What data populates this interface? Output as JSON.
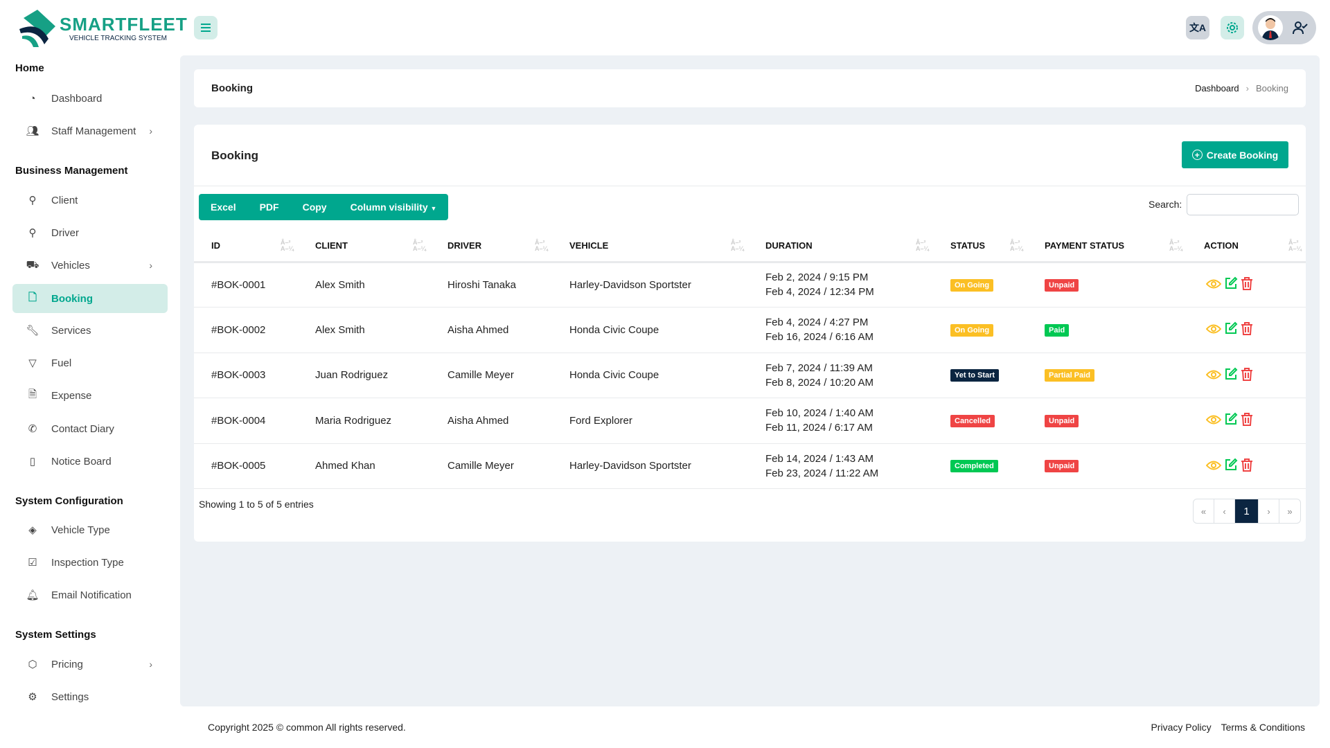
{
  "brand": {
    "name": "SMARTFLEET",
    "tagline": "VEHICLE TRACKING SYSTEM",
    "colors": {
      "accent": "#00a78e",
      "navy": "#0b2541"
    }
  },
  "sidebar": {
    "sections": [
      {
        "title": "Home",
        "items": [
          {
            "label": "Dashboard",
            "icon": "dashboard-icon"
          },
          {
            "label": "Staff Management",
            "icon": "users-icon",
            "chevron": true
          }
        ]
      },
      {
        "title": "Business Management",
        "items": [
          {
            "label": "Client",
            "icon": "user-icon"
          },
          {
            "label": "Driver",
            "icon": "driver-icon"
          },
          {
            "label": "Vehicles",
            "icon": "truck-icon",
            "chevron": true
          },
          {
            "label": "Booking",
            "icon": "file-icon",
            "active": true
          },
          {
            "label": "Services",
            "icon": "wrench-icon"
          },
          {
            "label": "Fuel",
            "icon": "filter-icon"
          },
          {
            "label": "Expense",
            "icon": "receipt-icon"
          },
          {
            "label": "Contact Diary",
            "icon": "phone-icon"
          },
          {
            "label": "Notice Board",
            "icon": "notebook-icon"
          }
        ]
      },
      {
        "title": "System Configuration",
        "items": [
          {
            "label": "Vehicle Type",
            "icon": "layers-icon"
          },
          {
            "label": "Inspection Type",
            "icon": "check-circle-icon"
          },
          {
            "label": "Email Notification",
            "icon": "bell-icon"
          }
        ]
      },
      {
        "title": "System Settings",
        "items": [
          {
            "label": "Pricing",
            "icon": "box-icon",
            "chevron": true
          },
          {
            "label": "Settings",
            "icon": "gear-icon"
          }
        ]
      }
    ]
  },
  "header": {
    "title": "Booking",
    "breadcrumb": [
      "Dashboard",
      "Booking"
    ]
  },
  "main": {
    "title": "Booking",
    "create_label": "Create Booking",
    "toolbar": [
      "Excel",
      "PDF",
      "Copy",
      "Column visibility"
    ],
    "search_label": "Search:",
    "search_value": "",
    "columns": [
      "ID",
      "CLIENT",
      "DRIVER",
      "VEHICLE",
      "DURATION",
      "STATUS",
      "PAYMENT STATUS",
      "ACTION"
    ],
    "rows": [
      {
        "id": "#BOK-0001",
        "client": "Alex Smith",
        "driver": "Hiroshi Tanaka",
        "vehicle": "Harley-Davidson Sportster",
        "start": "Feb 2, 2024 / 9:15 PM",
        "end": "Feb 4, 2024 / 12:34 PM",
        "status": "On Going",
        "status_color": "#fbbf24",
        "payment": "Unpaid",
        "payment_color": "#ef4444"
      },
      {
        "id": "#BOK-0002",
        "client": "Alex Smith",
        "driver": "Aisha Ahmed",
        "vehicle": "Honda Civic Coupe",
        "start": "Feb 4, 2024 / 4:27 PM",
        "end": "Feb 16, 2024 / 6:16 AM",
        "status": "On Going",
        "status_color": "#fbbf24",
        "payment": "Paid",
        "payment_color": "#00c853"
      },
      {
        "id": "#BOK-0003",
        "client": "Juan Rodriguez",
        "driver": "Camille Meyer",
        "vehicle": "Honda Civic Coupe",
        "start": "Feb 7, 2024 / 11:39 AM",
        "end": "Feb 8, 2024 / 10:20 AM",
        "status": "Yet to Start",
        "status_color": "#0b2541",
        "payment": "Partial Paid",
        "payment_color": "#fbbf24"
      },
      {
        "id": "#BOK-0004",
        "client": "Maria Rodriguez",
        "driver": "Aisha Ahmed",
        "vehicle": "Ford Explorer",
        "start": "Feb 10, 2024 / 1:40 AM",
        "end": "Feb 11, 2024 / 6:17 AM",
        "status": "Cancelled",
        "status_color": "#ef4444",
        "payment": "Unpaid",
        "payment_color": "#ef4444"
      },
      {
        "id": "#BOK-0005",
        "client": "Ahmed Khan",
        "driver": "Camille Meyer",
        "vehicle": "Harley-Davidson Sportster",
        "start": "Feb 14, 2024 / 1:43 AM",
        "end": "Feb 23, 2024 / 11:22 AM",
        "status": "Completed",
        "status_color": "#00c853",
        "payment": "Unpaid",
        "payment_color": "#ef4444"
      }
    ],
    "info": "Showing 1 to 5 of 5 entries",
    "pagination": {
      "first": "«",
      "prev": "‹",
      "current": "1",
      "next": "›",
      "last": "»"
    }
  },
  "footer": {
    "copyright": "Copyright 2025 © common All rights reserved.",
    "links": [
      "Privacy Policy",
      "Terms & Conditions"
    ]
  }
}
